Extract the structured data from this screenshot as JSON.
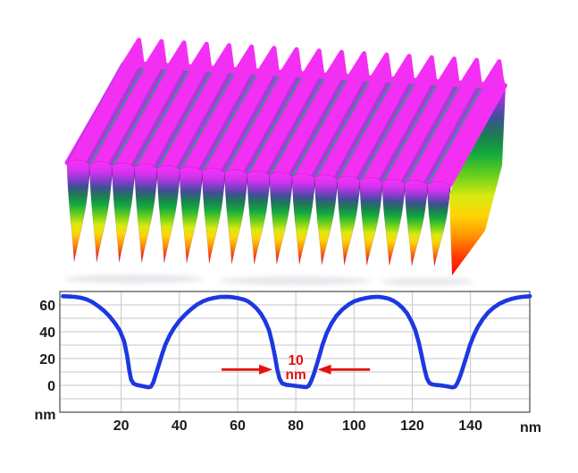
{
  "page": {
    "background": "#ffffff"
  },
  "chart_data": [
    {
      "type": "area",
      "name": "afm-3d-topography",
      "description": "3D rendered AFM topography of a periodic nanograting: flat magenta mesa tops separated by deep narrow grooves whose walls are colored by height from purple and dark blue through green and yellow to red at the groove bottoms",
      "num_ridges": 17,
      "period_nm": 52.5,
      "mesa_height_nm": 66,
      "groove_width_nm": 10,
      "palette": {
        "mesa_top": "#f42ff4",
        "groove_stripe_purple": "#a438dd",
        "groove_stripe_purple_light": "#c13be8",
        "groove_stripe_teal": "#2f9b80",
        "left_edge_accent": "#a93be0",
        "shadow": "#c9ccd4",
        "height_gradient": [
          "#fb30fa",
          "#d633f0",
          "#8e3bd0",
          "#3f4f96",
          "#1e7a55",
          "#12a93e",
          "#67cf1d",
          "#d8ea10",
          "#ffd505",
          "#ff9102",
          "#ff3c04",
          "#f60909"
        ],
        "height_gradient_offsets": [
          0,
          0.1,
          0.18,
          0.26,
          0.34,
          0.43,
          0.53,
          0.63,
          0.72,
          0.82,
          0.91,
          1
        ]
      }
    },
    {
      "type": "line",
      "name": "cross-section-profile",
      "title": "",
      "xlabel": "nm",
      "ylabel": "nm",
      "xlim": [
        -1,
        160.4
      ],
      "ylim": [
        -20,
        70
      ],
      "x_ticks": [
        20,
        40,
        60,
        80,
        100,
        120,
        140
      ],
      "y_ticks": [
        60,
        40,
        20,
        0
      ],
      "y_grid_step_nm": 10,
      "grid": true,
      "legend": "none",
      "line_color": "#1d38e0",
      "grid_color": "#c7c7cb",
      "frame_color": "#55585c",
      "label_color": "#1a1a1c",
      "points": [
        [
          0,
          66.5
        ],
        [
          2,
          66.3
        ],
        [
          4,
          66
        ],
        [
          6,
          65.4
        ],
        [
          8,
          64.2
        ],
        [
          10,
          62.2
        ],
        [
          12,
          59.3
        ],
        [
          14,
          55.8
        ],
        [
          16,
          51.5
        ],
        [
          18,
          46
        ],
        [
          19.5,
          41
        ],
        [
          21,
          33
        ],
        [
          22,
          22.5
        ],
        [
          22.8,
          11
        ],
        [
          23.4,
          4.5
        ],
        [
          24.2,
          1.5
        ],
        [
          25.2,
          0.4
        ],
        [
          26.5,
          -0.2
        ],
        [
          28,
          -0.8
        ],
        [
          29.3,
          -1.4
        ],
        [
          30.2,
          -1
        ],
        [
          31,
          2
        ],
        [
          31.8,
          7.5
        ],
        [
          32.8,
          14.5
        ],
        [
          34,
          23
        ],
        [
          35.2,
          30.5
        ],
        [
          36.6,
          37
        ],
        [
          38,
          42.3
        ],
        [
          40,
          48.2
        ],
        [
          42,
          52.8
        ],
        [
          44,
          56.8
        ],
        [
          46,
          60.2
        ],
        [
          48,
          62.6
        ],
        [
          50,
          64.3
        ],
        [
          52,
          65.3
        ],
        [
          54,
          65.9
        ],
        [
          56,
          66.1
        ],
        [
          58,
          65.8
        ],
        [
          60,
          65.1
        ],
        [
          62,
          64.1
        ],
        [
          63.5,
          62.7
        ],
        [
          65,
          60.4
        ],
        [
          66.5,
          57.4
        ],
        [
          68,
          53.4
        ],
        [
          69.5,
          47.8
        ],
        [
          70.8,
          41
        ],
        [
          71.8,
          32.5
        ],
        [
          72.8,
          22
        ],
        [
          73.6,
          12
        ],
        [
          74.4,
          5
        ],
        [
          75.3,
          1.6
        ],
        [
          76.6,
          0.5
        ],
        [
          78.2,
          0.1
        ],
        [
          80,
          -0.4
        ],
        [
          82,
          -0.9
        ],
        [
          83.6,
          -1.3
        ],
        [
          84.4,
          -0.4
        ],
        [
          85.2,
          2.8
        ],
        [
          86.2,
          8.5
        ],
        [
          87.2,
          15.5
        ],
        [
          88.2,
          23
        ],
        [
          89.2,
          30.5
        ],
        [
          90.6,
          39
        ],
        [
          92.2,
          46
        ],
        [
          94,
          52
        ],
        [
          96,
          56.6
        ],
        [
          98,
          60.1
        ],
        [
          100,
          62.6
        ],
        [
          102,
          64.1
        ],
        [
          104,
          65.1
        ],
        [
          106,
          65.8
        ],
        [
          108,
          66.1
        ],
        [
          110,
          65.6
        ],
        [
          112,
          64.6
        ],
        [
          113.6,
          63
        ],
        [
          115,
          61
        ],
        [
          116.6,
          57.9
        ],
        [
          118.2,
          53.7
        ],
        [
          119.6,
          48.3
        ],
        [
          121,
          41.5
        ],
        [
          122.2,
          32.5
        ],
        [
          123.2,
          22.5
        ],
        [
          124.2,
          12.5
        ],
        [
          125,
          5.5
        ],
        [
          125.8,
          2
        ],
        [
          126.8,
          0.7
        ],
        [
          128.2,
          0.3
        ],
        [
          130,
          -0.1
        ],
        [
          132,
          -0.7
        ],
        [
          133.8,
          -1.5
        ],
        [
          134.7,
          -0.9
        ],
        [
          135.5,
          1.8
        ],
        [
          136.4,
          6.5
        ],
        [
          137.4,
          13
        ],
        [
          138.6,
          21.5
        ],
        [
          139.8,
          30
        ],
        [
          141.2,
          37.5
        ],
        [
          142.6,
          43.8
        ],
        [
          144.2,
          49.3
        ],
        [
          146,
          54.2
        ],
        [
          148,
          58.1
        ],
        [
          150,
          60.9
        ],
        [
          152,
          62.9
        ],
        [
          154,
          64.4
        ],
        [
          156,
          65.4
        ],
        [
          158,
          66.1
        ],
        [
          160.4,
          66.5
        ]
      ],
      "annotation": {
        "text_line1": "10",
        "text_line2": "nm",
        "color": "#e41210",
        "arrows_y_nm": 11.8,
        "left_arrow_tail_nm": 54.5,
        "left_arrow_tip_nm": 72,
        "right_arrow_tail_nm": 105.5,
        "right_arrow_tip_nm": 87.5,
        "text_center_nm": 80
      }
    }
  ]
}
